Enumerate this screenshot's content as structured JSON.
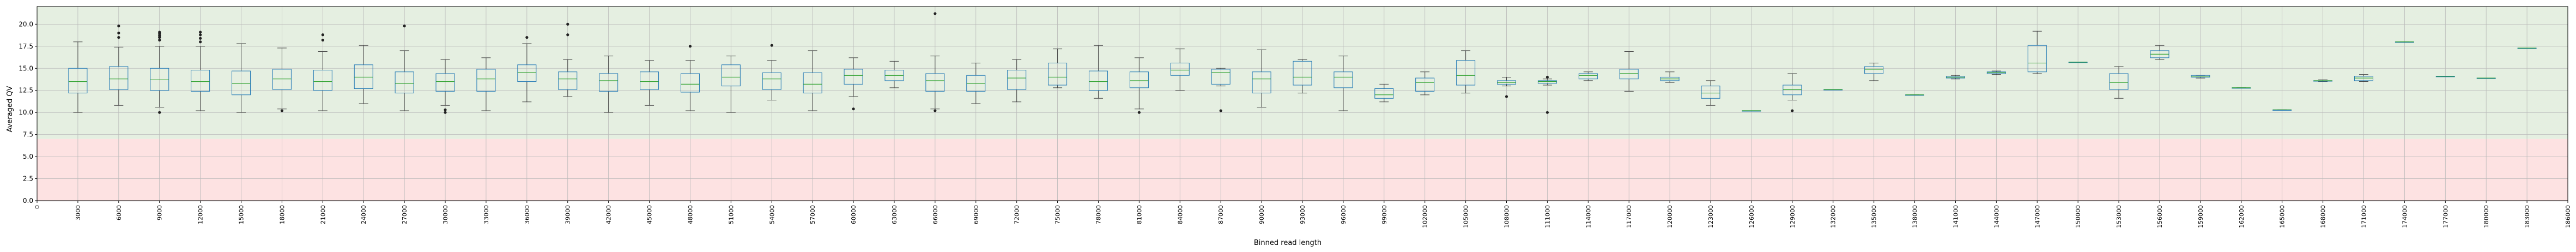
{
  "chart_data": {
    "type": "box",
    "xlabel": "Binned read length",
    "ylabel": "Averaged QV",
    "ylim": [
      0,
      22
    ],
    "yticks": [
      "0.0",
      "2.5",
      "5.0",
      "7.5",
      "10.0",
      "12.5",
      "15.0",
      "17.5",
      "20.0"
    ],
    "xlim": [
      0,
      186000
    ],
    "grid": true,
    "bands": [
      {
        "name": "low",
        "from": 0,
        "to": 7,
        "color": "#fde2e2"
      },
      {
        "name": "high",
        "from": 7,
        "to": 22,
        "color": "#e5efe1"
      }
    ],
    "colors": {
      "box": "#1f77b4",
      "median": "#2ca02c",
      "whisker": "#444444",
      "flier": "#222222"
    },
    "categories": [
      "0",
      "3000",
      "6000",
      "9000",
      "12000",
      "15000",
      "18000",
      "21000",
      "24000",
      "27000",
      "30000",
      "33000",
      "36000",
      "39000",
      "42000",
      "45000",
      "48000",
      "51000",
      "54000",
      "57000",
      "60000",
      "63000",
      "66000",
      "69000",
      "72000",
      "75000",
      "78000",
      "81000",
      "84000",
      "87000",
      "90000",
      "93000",
      "96000",
      "99000",
      "102000",
      "105000",
      "108000",
      "111000",
      "114000",
      "117000",
      "120000",
      "123000",
      "126000",
      "129000",
      "132000",
      "135000",
      "138000",
      "141000",
      "144000",
      "147000",
      "150000",
      "153000",
      "156000",
      "159000",
      "162000",
      "165000",
      "168000",
      "171000",
      "174000",
      "177000",
      "180000",
      "183000",
      "186000"
    ],
    "boxes": [
      {
        "x": 3000,
        "low": 10.0,
        "q1": 12.2,
        "median": 13.5,
        "q3": 15.0,
        "high": 18.0,
        "fliers": []
      },
      {
        "x": 6000,
        "low": 10.8,
        "q1": 12.6,
        "median": 13.8,
        "q3": 15.2,
        "high": 17.4,
        "fliers": [
          18.5,
          19.0,
          19.8
        ]
      },
      {
        "x": 9000,
        "low": 10.6,
        "q1": 12.5,
        "median": 13.7,
        "q3": 15.0,
        "high": 17.5,
        "fliers": [
          10.0,
          18.2,
          18.5,
          18.7,
          18.9,
          19.1
        ]
      },
      {
        "x": 12000,
        "low": 10.2,
        "q1": 12.4,
        "median": 13.5,
        "q3": 14.8,
        "high": 17.5,
        "fliers": [
          18.0,
          18.4,
          18.8,
          19.1
        ]
      },
      {
        "x": 15000,
        "low": 10.0,
        "q1": 12.0,
        "median": 13.3,
        "q3": 14.7,
        "high": 17.8,
        "fliers": []
      },
      {
        "x": 18000,
        "low": 10.4,
        "q1": 12.6,
        "median": 13.8,
        "q3": 14.9,
        "high": 17.3,
        "fliers": [
          10.2
        ]
      },
      {
        "x": 21000,
        "low": 10.2,
        "q1": 12.5,
        "median": 13.5,
        "q3": 14.8,
        "high": 16.9,
        "fliers": [
          18.2,
          18.8
        ]
      },
      {
        "x": 24000,
        "low": 11.0,
        "q1": 12.7,
        "median": 14.0,
        "q3": 15.4,
        "high": 17.6,
        "fliers": []
      },
      {
        "x": 27000,
        "low": 10.2,
        "q1": 12.2,
        "median": 13.3,
        "q3": 14.6,
        "high": 17.0,
        "fliers": [
          19.8
        ]
      },
      {
        "x": 30000,
        "low": 10.8,
        "q1": 12.4,
        "median": 13.5,
        "q3": 14.4,
        "high": 16.0,
        "fliers": [
          10.0,
          10.3
        ]
      },
      {
        "x": 33000,
        "low": 10.2,
        "q1": 12.4,
        "median": 13.8,
        "q3": 14.9,
        "high": 16.2,
        "fliers": []
      },
      {
        "x": 36000,
        "low": 11.2,
        "q1": 13.5,
        "median": 14.5,
        "q3": 15.4,
        "high": 17.8,
        "fliers": [
          18.5
        ]
      },
      {
        "x": 39000,
        "low": 11.8,
        "q1": 12.6,
        "median": 13.8,
        "q3": 14.6,
        "high": 16.0,
        "fliers": [
          18.8,
          20.0
        ]
      },
      {
        "x": 42000,
        "low": 10.0,
        "q1": 12.4,
        "median": 13.6,
        "q3": 14.4,
        "high": 16.4,
        "fliers": []
      },
      {
        "x": 45000,
        "low": 10.8,
        "q1": 12.6,
        "median": 13.5,
        "q3": 14.6,
        "high": 15.9,
        "fliers": []
      },
      {
        "x": 48000,
        "low": 10.2,
        "q1": 12.3,
        "median": 13.2,
        "q3": 14.4,
        "high": 15.9,
        "fliers": [
          17.5
        ]
      },
      {
        "x": 51000,
        "low": 10.0,
        "q1": 13.0,
        "median": 14.0,
        "q3": 15.4,
        "high": 16.4,
        "fliers": []
      },
      {
        "x": 54000,
        "low": 11.4,
        "q1": 12.6,
        "median": 13.8,
        "q3": 14.5,
        "high": 15.9,
        "fliers": [
          17.6
        ]
      },
      {
        "x": 57000,
        "low": 10.2,
        "q1": 12.2,
        "median": 13.2,
        "q3": 14.5,
        "high": 17.0,
        "fliers": []
      },
      {
        "x": 60000,
        "low": 11.8,
        "q1": 13.2,
        "median": 14.2,
        "q3": 14.9,
        "high": 16.2,
        "fliers": [
          10.4
        ]
      },
      {
        "x": 63000,
        "low": 12.8,
        "q1": 13.6,
        "median": 14.2,
        "q3": 14.8,
        "high": 15.8,
        "fliers": []
      },
      {
        "x": 66000,
        "low": 10.4,
        "q1": 12.4,
        "median": 13.6,
        "q3": 14.4,
        "high": 16.4,
        "fliers": [
          10.2,
          21.2
        ]
      },
      {
        "x": 69000,
        "low": 11.0,
        "q1": 12.4,
        "median": 13.3,
        "q3": 14.2,
        "high": 15.6,
        "fliers": []
      },
      {
        "x": 72000,
        "low": 11.2,
        "q1": 12.6,
        "median": 13.9,
        "q3": 14.8,
        "high": 16.0,
        "fliers": []
      },
      {
        "x": 75000,
        "low": 12.8,
        "q1": 13.1,
        "median": 14.0,
        "q3": 15.6,
        "high": 17.2,
        "fliers": []
      },
      {
        "x": 78000,
        "low": 11.6,
        "q1": 12.5,
        "median": 13.5,
        "q3": 14.7,
        "high": 17.6,
        "fliers": []
      },
      {
        "x": 81000,
        "low": 10.4,
        "q1": 12.8,
        "median": 13.6,
        "q3": 14.6,
        "high": 16.2,
        "fliers": [
          10.0
        ]
      },
      {
        "x": 84000,
        "low": 12.5,
        "q1": 14.2,
        "median": 14.8,
        "q3": 15.6,
        "high": 17.2,
        "fliers": []
      },
      {
        "x": 87000,
        "low": 13.0,
        "q1": 13.2,
        "median": 14.5,
        "q3": 14.9,
        "high": 15.0,
        "fliers": [
          10.2
        ]
      },
      {
        "x": 90000,
        "low": 10.6,
        "q1": 12.2,
        "median": 13.8,
        "q3": 14.6,
        "high": 17.1,
        "fliers": []
      },
      {
        "x": 93000,
        "low": 12.2,
        "q1": 13.1,
        "median": 14.0,
        "q3": 15.8,
        "high": 16.0,
        "fliers": []
      },
      {
        "x": 96000,
        "low": 10.2,
        "q1": 12.8,
        "median": 14.0,
        "q3": 14.6,
        "high": 16.4,
        "fliers": []
      },
      {
        "x": 99000,
        "low": 11.2,
        "q1": 11.6,
        "median": 12.0,
        "q3": 12.7,
        "high": 13.2,
        "fliers": []
      },
      {
        "x": 102000,
        "low": 12.0,
        "q1": 12.4,
        "median": 13.4,
        "q3": 13.9,
        "high": 14.6,
        "fliers": []
      },
      {
        "x": 105000,
        "low": 12.2,
        "q1": 13.1,
        "median": 14.2,
        "q3": 15.9,
        "high": 17.0,
        "fliers": []
      },
      {
        "x": 108000,
        "low": 13.0,
        "q1": 13.2,
        "median": 13.4,
        "q3": 13.6,
        "high": 14.0,
        "fliers": [
          11.8
        ]
      },
      {
        "x": 111000,
        "low": 13.1,
        "q1": 13.3,
        "median": 13.5,
        "q3": 13.6,
        "high": 13.8,
        "fliers": [
          14.0,
          10.0
        ]
      },
      {
        "x": 114000,
        "low": 13.6,
        "q1": 13.8,
        "median": 14.2,
        "q3": 14.4,
        "high": 14.6,
        "fliers": []
      },
      {
        "x": 117000,
        "low": 12.4,
        "q1": 13.8,
        "median": 14.4,
        "q3": 14.9,
        "high": 16.9,
        "fliers": []
      },
      {
        "x": 120000,
        "low": 13.4,
        "q1": 13.6,
        "median": 13.8,
        "q3": 14.0,
        "high": 14.6,
        "fliers": []
      },
      {
        "x": 123000,
        "low": 10.8,
        "q1": 11.6,
        "median": 12.2,
        "q3": 13.0,
        "high": 13.6,
        "fliers": []
      },
      {
        "x": 126000,
        "low": 10.2,
        "q1": 10.2,
        "median": 10.2,
        "q3": 10.2,
        "high": 10.2,
        "fliers": []
      },
      {
        "x": 129000,
        "low": 11.4,
        "q1": 12.0,
        "median": 12.6,
        "q3": 13.1,
        "high": 14.4,
        "fliers": [
          10.2
        ]
      },
      {
        "x": 132000,
        "low": 12.6,
        "q1": 12.6,
        "median": 12.6,
        "q3": 12.6,
        "high": 12.6,
        "fliers": []
      },
      {
        "x": 135000,
        "low": 13.6,
        "q1": 14.4,
        "median": 14.9,
        "q3": 15.2,
        "high": 15.6,
        "fliers": []
      },
      {
        "x": 138000,
        "low": 12.0,
        "q1": 12.0,
        "median": 12.0,
        "q3": 12.0,
        "high": 12.0,
        "fliers": []
      },
      {
        "x": 141000,
        "low": 13.8,
        "q1": 13.9,
        "median": 14.0,
        "q3": 14.1,
        "high": 14.2,
        "fliers": []
      },
      {
        "x": 144000,
        "low": 14.3,
        "q1": 14.4,
        "median": 14.5,
        "q3": 14.6,
        "high": 14.7,
        "fliers": []
      },
      {
        "x": 147000,
        "low": 14.4,
        "q1": 14.6,
        "median": 15.6,
        "q3": 17.6,
        "high": 19.2,
        "fliers": []
      },
      {
        "x": 150000,
        "low": 15.7,
        "q1": 15.7,
        "median": 15.7,
        "q3": 15.7,
        "high": 15.7,
        "fliers": []
      },
      {
        "x": 153000,
        "low": 11.6,
        "q1": 12.6,
        "median": 13.4,
        "q3": 14.4,
        "high": 15.2,
        "fliers": []
      },
      {
        "x": 156000,
        "low": 16.0,
        "q1": 16.2,
        "median": 16.6,
        "q3": 17.0,
        "high": 17.6,
        "fliers": []
      },
      {
        "x": 159000,
        "low": 13.9,
        "q1": 14.0,
        "median": 14.1,
        "q3": 14.2,
        "high": 14.2,
        "fliers": []
      },
      {
        "x": 162000,
        "low": 12.8,
        "q1": 12.8,
        "median": 12.8,
        "q3": 12.8,
        "high": 12.8,
        "fliers": []
      },
      {
        "x": 165000,
        "low": 10.3,
        "q1": 10.3,
        "median": 10.3,
        "q3": 10.3,
        "high": 10.3,
        "fliers": []
      },
      {
        "x": 168000,
        "low": 13.5,
        "q1": 13.6,
        "median": 13.6,
        "q3": 13.6,
        "high": 13.7,
        "fliers": []
      },
      {
        "x": 171000,
        "low": 13.5,
        "q1": 13.6,
        "median": 13.9,
        "q3": 14.1,
        "high": 14.3,
        "fliers": []
      },
      {
        "x": 174000,
        "low": 18.0,
        "q1": 18.0,
        "median": 18.0,
        "q3": 18.0,
        "high": 18.0,
        "fliers": []
      },
      {
        "x": 177000,
        "low": 14.1,
        "q1": 14.1,
        "median": 14.1,
        "q3": 14.1,
        "high": 14.1,
        "fliers": []
      },
      {
        "x": 180000,
        "low": 13.9,
        "q1": 13.9,
        "median": 13.9,
        "q3": 13.9,
        "high": 13.9,
        "fliers": []
      },
      {
        "x": 183000,
        "low": 17.3,
        "q1": 17.3,
        "median": 17.3,
        "q3": 17.3,
        "high": 17.3,
        "fliers": []
      }
    ]
  }
}
